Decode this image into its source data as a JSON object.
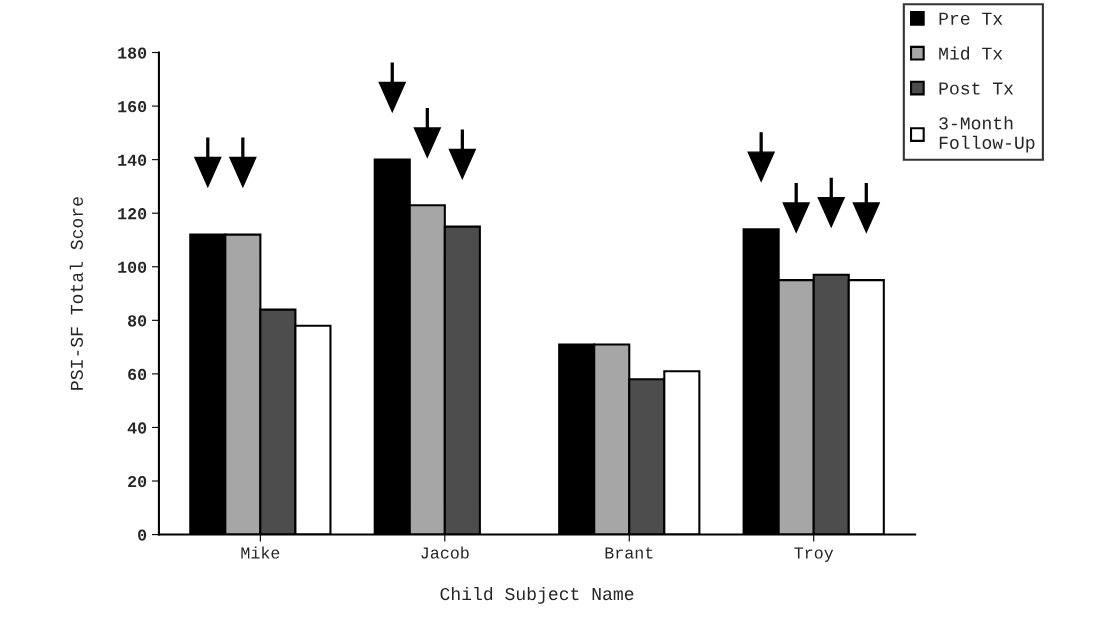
{
  "chart_data": {
    "type": "bar",
    "xlabel": "Child Subject Name",
    "ylabel": "PSI-SF Total Score",
    "categories": [
      "Mike",
      "Jacob",
      "Brant",
      "Troy"
    ],
    "series": [
      {
        "name": "Pre Tx",
        "color": "#000000",
        "values": [
          112,
          140,
          71,
          114
        ]
      },
      {
        "name": "Mid Tx",
        "color": "#a6a6a6",
        "values": [
          112,
          123,
          71,
          95
        ]
      },
      {
        "name": "Post Tx",
        "color": "#4d4d4d",
        "values": [
          84,
          115,
          58,
          97
        ]
      },
      {
        "name": "3-Month\nFollow-Up",
        "color": "#ffffff",
        "values": [
          78,
          null,
          61,
          95
        ]
      }
    ],
    "ylim": [
      0,
      180
    ],
    "yticks": [
      0,
      20,
      40,
      60,
      80,
      100,
      120,
      140,
      160,
      180
    ],
    "grid": false,
    "legend": "top right"
  }
}
